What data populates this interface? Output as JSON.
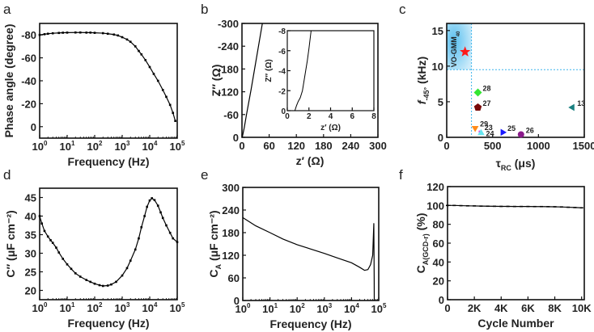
{
  "chart_data": [
    {
      "id": "a",
      "panel_label": "a",
      "type": "line",
      "xlabel": "Frequency (Hz)",
      "ylabel": "Phase angle (degree)",
      "xscale": "log",
      "xlim": [
        1,
        100000
      ],
      "ylim": [
        10,
        -90
      ],
      "xticks": [
        1,
        10,
        100,
        1000,
        10000,
        100000
      ],
      "xtick_labels": [
        "10^0",
        "10^1",
        "10^2",
        "10^3",
        "10^4",
        "10^5"
      ],
      "yticks": [
        -80,
        -60,
        -40,
        -20,
        0
      ],
      "ytick_labels": [
        "-80",
        "-60",
        "-40",
        "-20",
        "0"
      ],
      "series": [
        {
          "color": "#000000",
          "marker": "square",
          "x": [
            1,
            1.5,
            2,
            3,
            5,
            7,
            10,
            20,
            30,
            50,
            70,
            100,
            200,
            300,
            500,
            700,
            1000,
            1500,
            2000,
            3000,
            4000,
            5000,
            7000,
            10000,
            14000,
            20000,
            30000,
            40000,
            55000,
            70000,
            85000
          ],
          "y": [
            -80,
            -80.6,
            -81,
            -81.4,
            -81.7,
            -81.9,
            -82,
            -82.1,
            -82.1,
            -82,
            -82,
            -81.8,
            -81.5,
            -81,
            -80.3,
            -79.5,
            -78,
            -76,
            -74,
            -70,
            -66,
            -63,
            -58,
            -52,
            -46,
            -40,
            -32,
            -26,
            -19,
            -12,
            -5
          ]
        }
      ]
    },
    {
      "id": "b",
      "panel_label": "b",
      "type": "line",
      "xlabel": "z′ (Ω)",
      "ylabel": "Z″ (Ω)",
      "xlim": [
        0,
        300
      ],
      "ylim": [
        0,
        -300
      ],
      "xticks": [
        0,
        60,
        120,
        180,
        240,
        300
      ],
      "xtick_labels": [
        "0",
        "60",
        "120",
        "180",
        "240",
        "300"
      ],
      "yticks": [
        0,
        -60,
        -120,
        -180,
        -240,
        -300
      ],
      "ytick_labels": [
        "0",
        "-60",
        "-120",
        "-180",
        "-240",
        "-300"
      ],
      "series": [
        {
          "color": "#000000",
          "marker": "none",
          "x": [
            0.7,
            2,
            5,
            10,
            20,
            30,
            40,
            45
          ],
          "y": [
            0,
            -8,
            -25,
            -60,
            -125,
            -195,
            -265,
            -300
          ]
        }
      ],
      "inset": {
        "xlabel": "z′ (Ω)",
        "ylabel": "Z″ (Ω)",
        "xlim": [
          0,
          8
        ],
        "ylim": [
          0,
          -8
        ],
        "xticks": [
          0,
          2,
          4,
          6,
          8
        ],
        "xtick_labels": [
          "0",
          "2",
          "4",
          "6",
          "8"
        ],
        "yticks": [
          0,
          -2,
          -4,
          -6,
          -8
        ],
        "ytick_labels": [
          "0",
          "-2",
          "-4",
          "-6",
          "-8"
        ],
        "series": [
          {
            "color": "#000000",
            "marker": "none",
            "x": [
              0.7,
              0.85,
              1.0,
              1.2,
              1.4,
              1.55,
              1.7,
              1.85,
              2.0,
              2.2
            ],
            "y": [
              0,
              -0.5,
              -0.9,
              -1.3,
              -2.0,
              -3.0,
              -4.0,
              -5.0,
              -6.2,
              -8
            ]
          }
        ]
      }
    },
    {
      "id": "c",
      "panel_label": "c",
      "type": "scatter",
      "xlabel": "τRC (μs)",
      "xlabel_main": "τ",
      "xlabel_sub": "RC",
      "xlabel_unit": " (μs)",
      "ylabel": "f-45° (kHz)",
      "ylabel_main": "f",
      "ylabel_sub": "-45°",
      "ylabel_unit": " (kHz)",
      "xlim": [
        0,
        1500
      ],
      "ylim": [
        0,
        16
      ],
      "xticks": [
        0,
        500,
        1000,
        1500
      ],
      "xtick_labels": [
        "0",
        "500",
        "1000",
        "1500"
      ],
      "yticks": [
        0,
        5,
        10,
        15
      ],
      "ytick_labels": [
        "0",
        "5",
        "10",
        "15"
      ],
      "highlight_region": {
        "x": [
          0,
          270
        ],
        "y": [
          9.5,
          16
        ],
        "color": "#3cb4ec",
        "label": "VO-GMM40",
        "label_main": "VO-GMM",
        "label_sub": "40"
      },
      "reference_lines": {
        "x": 270,
        "y": 9.5,
        "color": "#3cb4ec",
        "style": "dashed"
      },
      "points": [
        {
          "label": "",
          "x": 200,
          "y": 12,
          "marker": "star",
          "color": "#ff1a1a"
        },
        {
          "label": "28",
          "x": 340,
          "y": 6.3,
          "marker": "diamond",
          "color": "#33e633"
        },
        {
          "label": "27",
          "x": 340,
          "y": 4.2,
          "marker": "pentagon",
          "color": "#7a0a0a"
        },
        {
          "label": "29",
          "x": 310,
          "y": 1.3,
          "marker": "triangle-down",
          "color": "#ff8c1a"
        },
        {
          "label": "23",
          "x": 360,
          "y": 0.8,
          "marker": "square",
          "color": "#e633e6"
        },
        {
          "label": "24",
          "x": 375,
          "y": 0.6,
          "marker": "triangle-up",
          "color": "#66e6f0"
        },
        {
          "label": "25",
          "x": 610,
          "y": 0.7,
          "marker": "triangle-right",
          "color": "#1a1aff"
        },
        {
          "label": "26",
          "x": 810,
          "y": 0.4,
          "marker": "circle",
          "color": "#8a1a8a"
        },
        {
          "label": "13",
          "x": 1370,
          "y": 4.2,
          "marker": "triangle-left",
          "color": "#1a8080"
        }
      ]
    },
    {
      "id": "d",
      "panel_label": "d",
      "type": "line",
      "xlabel": "Frequency (Hz)",
      "ylabel": "C″ (μF cm⁻²)",
      "xscale": "log",
      "xlim": [
        1,
        100000
      ],
      "ylim": [
        17.5,
        47.5
      ],
      "xticks": [
        1,
        10,
        100,
        1000,
        10000,
        100000
      ],
      "xtick_labels": [
        "10^0",
        "10^1",
        "10^2",
        "10^3",
        "10^4",
        "10^5"
      ],
      "yticks": [
        20,
        25,
        30,
        35,
        40,
        45
      ],
      "ytick_labels": [
        "20",
        "25",
        "30",
        "35",
        "40",
        "45"
      ],
      "series": [
        {
          "color": "#000000",
          "marker": "square",
          "x": [
            1,
            1.2,
            1.5,
            2,
            2.5,
            3,
            4,
            5,
            7,
            10,
            14,
            20,
            30,
            50,
            70,
            100,
            150,
            200,
            300,
            400,
            600,
            1000,
            1500,
            2000,
            3000,
            4000,
            5000,
            6500,
            8000,
            10000,
            12000,
            15000,
            20000,
            25000,
            30000,
            40000,
            55000,
            70000,
            100000
          ],
          "y": [
            40,
            38,
            36,
            34.5,
            33.5,
            32.8,
            31.5,
            30.2,
            28.5,
            27,
            25.8,
            24.6,
            23.7,
            22.8,
            22.3,
            21.8,
            21.4,
            21.2,
            21.3,
            21.6,
            22.3,
            24,
            26,
            28,
            31,
            34,
            37,
            40,
            42.5,
            44.2,
            44.8,
            44.3,
            42.8,
            41,
            39.5,
            37.5,
            35.5,
            34,
            33
          ]
        }
      ]
    },
    {
      "id": "e",
      "panel_label": "e",
      "type": "line",
      "xlabel": "Frequency (Hz)",
      "ylabel": "CA (μF cm⁻²)",
      "ylabel_main": "C",
      "ylabel_sub": "A",
      "ylabel_unit": " (μF cm⁻²)",
      "xscale": "log",
      "xlim": [
        1,
        100000
      ],
      "ylim": [
        0,
        300
      ],
      "xticks": [
        1,
        10,
        100,
        1000,
        10000,
        100000
      ],
      "xtick_labels": [
        "10^0",
        "10^1",
        "10^2",
        "10^3",
        "10^4",
        "10^5"
      ],
      "yticks": [
        0,
        60,
        120,
        180,
        240,
        300
      ],
      "ytick_labels": [
        "0",
        "60",
        "120",
        "180",
        "240",
        "300"
      ],
      "series": [
        {
          "color": "#000000",
          "marker": "none",
          "x": [
            1,
            3,
            10,
            30,
            100,
            300,
            1000,
            3000,
            10000,
            20000,
            30000,
            40000,
            50000,
            60000,
            66000,
            68000,
            68500
          ],
          "y": [
            220,
            198,
            180,
            163,
            148,
            137,
            125,
            113,
            100,
            88,
            80,
            82,
            95,
            120,
            205,
            60,
            0
          ]
        }
      ]
    },
    {
      "id": "f",
      "panel_label": "f",
      "type": "line",
      "xlabel": "Cycle Number",
      "ylabel": "CA(GCD-r) (%)",
      "ylabel_main": "C",
      "ylabel_sub": "A(GCD-r)",
      "ylabel_unit": " (%)",
      "xlim": [
        0,
        10200
      ],
      "ylim": [
        0,
        120
      ],
      "xticks": [
        0,
        2000,
        4000,
        6000,
        8000,
        10000
      ],
      "xtick_labels": [
        "0",
        "2K",
        "4K",
        "6K",
        "8K",
        "10K"
      ],
      "yticks": [
        0,
        20,
        40,
        60,
        80,
        100,
        120
      ],
      "ytick_labels": [
        "0",
        "20",
        "40",
        "60",
        "80",
        "100",
        "120"
      ],
      "series": [
        {
          "color": "#000000",
          "marker": "dash",
          "x": [
            0,
            500,
            1000,
            1500,
            2000,
            2500,
            3000,
            3500,
            4000,
            4500,
            5000,
            5500,
            6000,
            6500,
            7000,
            7500,
            8000,
            8500,
            9000,
            9500,
            10000
          ],
          "y": [
            100,
            100,
            99.8,
            99.6,
            99.5,
            99.3,
            99.2,
            99.1,
            99,
            99,
            98.9,
            98.9,
            98.9,
            98.8,
            98.8,
            98.7,
            98.6,
            98.4,
            98.1,
            97.8,
            97.5
          ]
        }
      ]
    }
  ]
}
